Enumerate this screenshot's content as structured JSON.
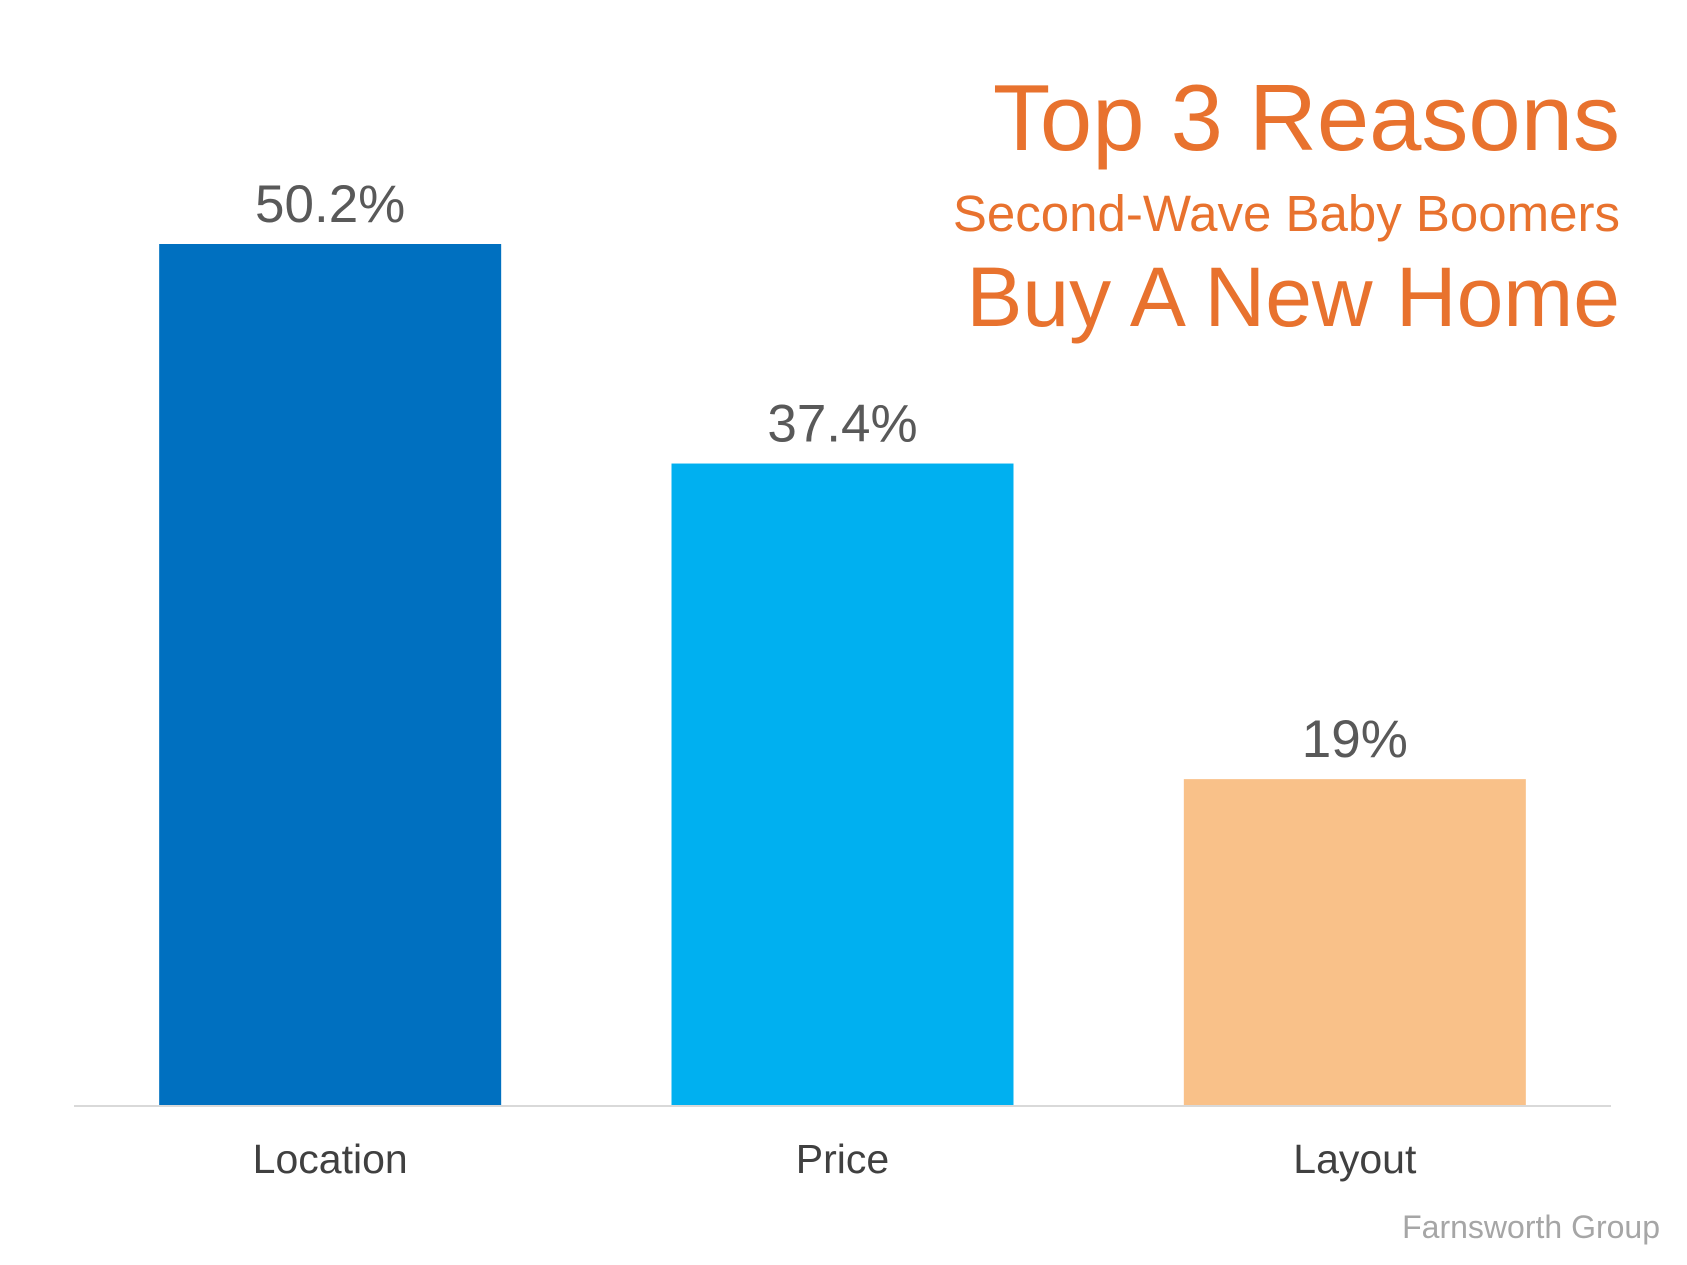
{
  "chart_data": {
    "type": "bar",
    "title": "Top 3 Reasons",
    "subtitle": "Second-Wave Baby Boomers",
    "title_continued": "Buy A New Home",
    "categories": [
      "Location",
      "Price",
      "Layout"
    ],
    "values": [
      50.2,
      37.4,
      19
    ],
    "value_labels": [
      "50.2%",
      "37.4%",
      "19%"
    ],
    "colors": [
      "#0070c0",
      "#00b0f0",
      "#f9c189"
    ],
    "source": "Farnsworth Group"
  }
}
